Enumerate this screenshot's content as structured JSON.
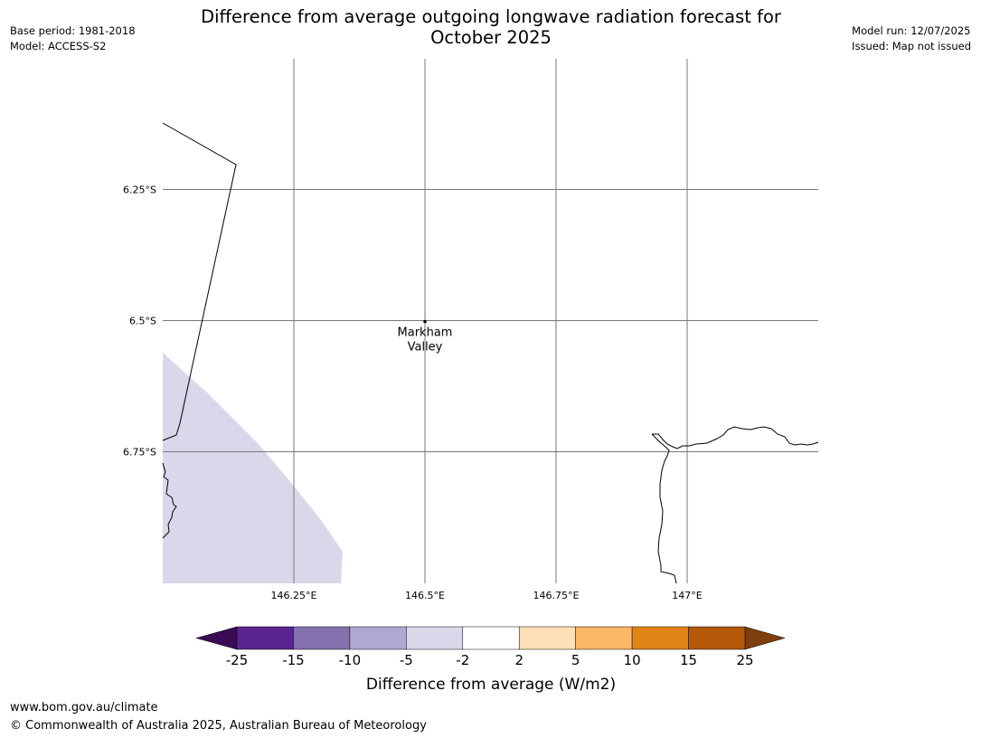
{
  "header": {
    "title_line1": "Difference from average outgoing longwave radiation forecast for",
    "title_line2": "October 2025",
    "base_period": "Base period: 1981-2018",
    "model": "Model: ACCESS-S2",
    "model_run": "Model run: 12/07/2025",
    "issued": "Issued: Map not issued"
  },
  "map": {
    "lon_ticks": [
      {
        "value": 146.25,
        "label": "146.25°E"
      },
      {
        "value": 146.5,
        "label": "146.5°E"
      },
      {
        "value": 146.75,
        "label": "146.75°E"
      },
      {
        "value": 147.0,
        "label": "147°E"
      }
    ],
    "lat_ticks": [
      {
        "value": -6.25,
        "label": "6.25°S"
      },
      {
        "value": -6.5,
        "label": "6.5°S"
      },
      {
        "value": -6.75,
        "label": "6.75°S"
      }
    ],
    "place": {
      "name_line1": "Markham",
      "name_line2": "Valley",
      "lon": 146.5,
      "lat": -6.5
    },
    "colors": {
      "grid": "#777777",
      "fill_-5_-2": "#d8d8ea",
      "coast": "#000000"
    }
  },
  "colorbar": {
    "label": "Difference from average (W/m2)",
    "tick_labels": [
      "-25",
      "-15",
      "-10",
      "-5",
      "-2",
      "2",
      "5",
      "10",
      "15",
      "25"
    ],
    "colors": [
      "#5a2590",
      "#8471ae",
      "#b1a8d2",
      "#d8d8ea",
      "#ffffff",
      "#fde0b5",
      "#fbb764",
      "#e18516",
      "#b45907"
    ],
    "extend_low_color": "#3a0a55",
    "extend_high_color": "#7e3f0c"
  },
  "footer": {
    "website": "www.bom.gov.au/climate",
    "copyright": "© Commonwealth of Australia 2025, Australian Bureau of Meteorology"
  }
}
